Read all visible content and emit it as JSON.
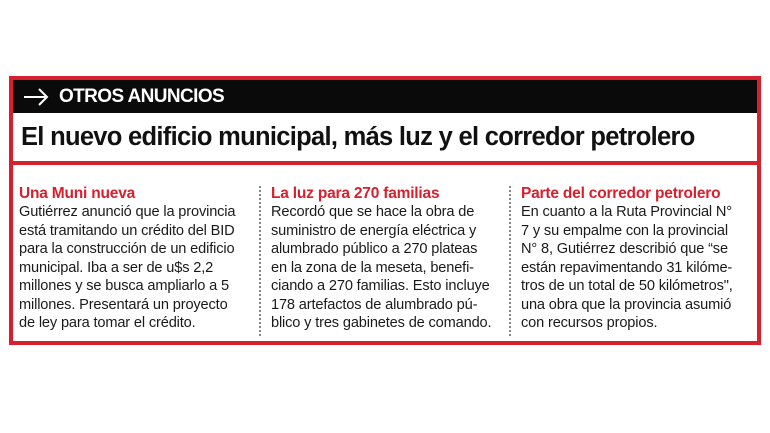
{
  "kicker": "OTROS ANUNCIOS",
  "headline": "El nuevo edificio municipal, más luz y el corredor petrolero",
  "colors": {
    "accent": "#d7202e",
    "bar": "#0a0a0a"
  },
  "columns": [
    {
      "title": "Una Muni nueva",
      "lines": [
        "Gutiérrez anunció que la provincia",
        "está tramitando un crédito del BID",
        "para la construcción de un edificio",
        "municipal. Iba a ser de u$s 2,2",
        "millones y se busca ampliarlo a 5",
        "millones. Presentará un proyecto",
        "de ley para tomar el crédito."
      ]
    },
    {
      "title": "La luz para 270 familias",
      "lines": [
        "Recordó que se hace la obra de",
        "suministro de energía eléctrica y",
        "alumbrado público a 270 plateas",
        "en la zona de la meseta, benefi-",
        "ciando a 270 familias. Esto incluye",
        "178 artefactos de alumbrado pú-",
        "blico y tres gabinetes de comando."
      ]
    },
    {
      "title": "Parte del corredor petrolero",
      "lines": [
        "En cuanto a la Ruta Provincial N°",
        "7 y su empalme con la provincial",
        "N° 8, Gutiérrez describió que “se",
        "están repavimentando 31 kilóme-",
        "tros de un total de 50 kilómetros\",",
        "una obra que la provincia asumió",
        "con recursos propios."
      ]
    }
  ]
}
